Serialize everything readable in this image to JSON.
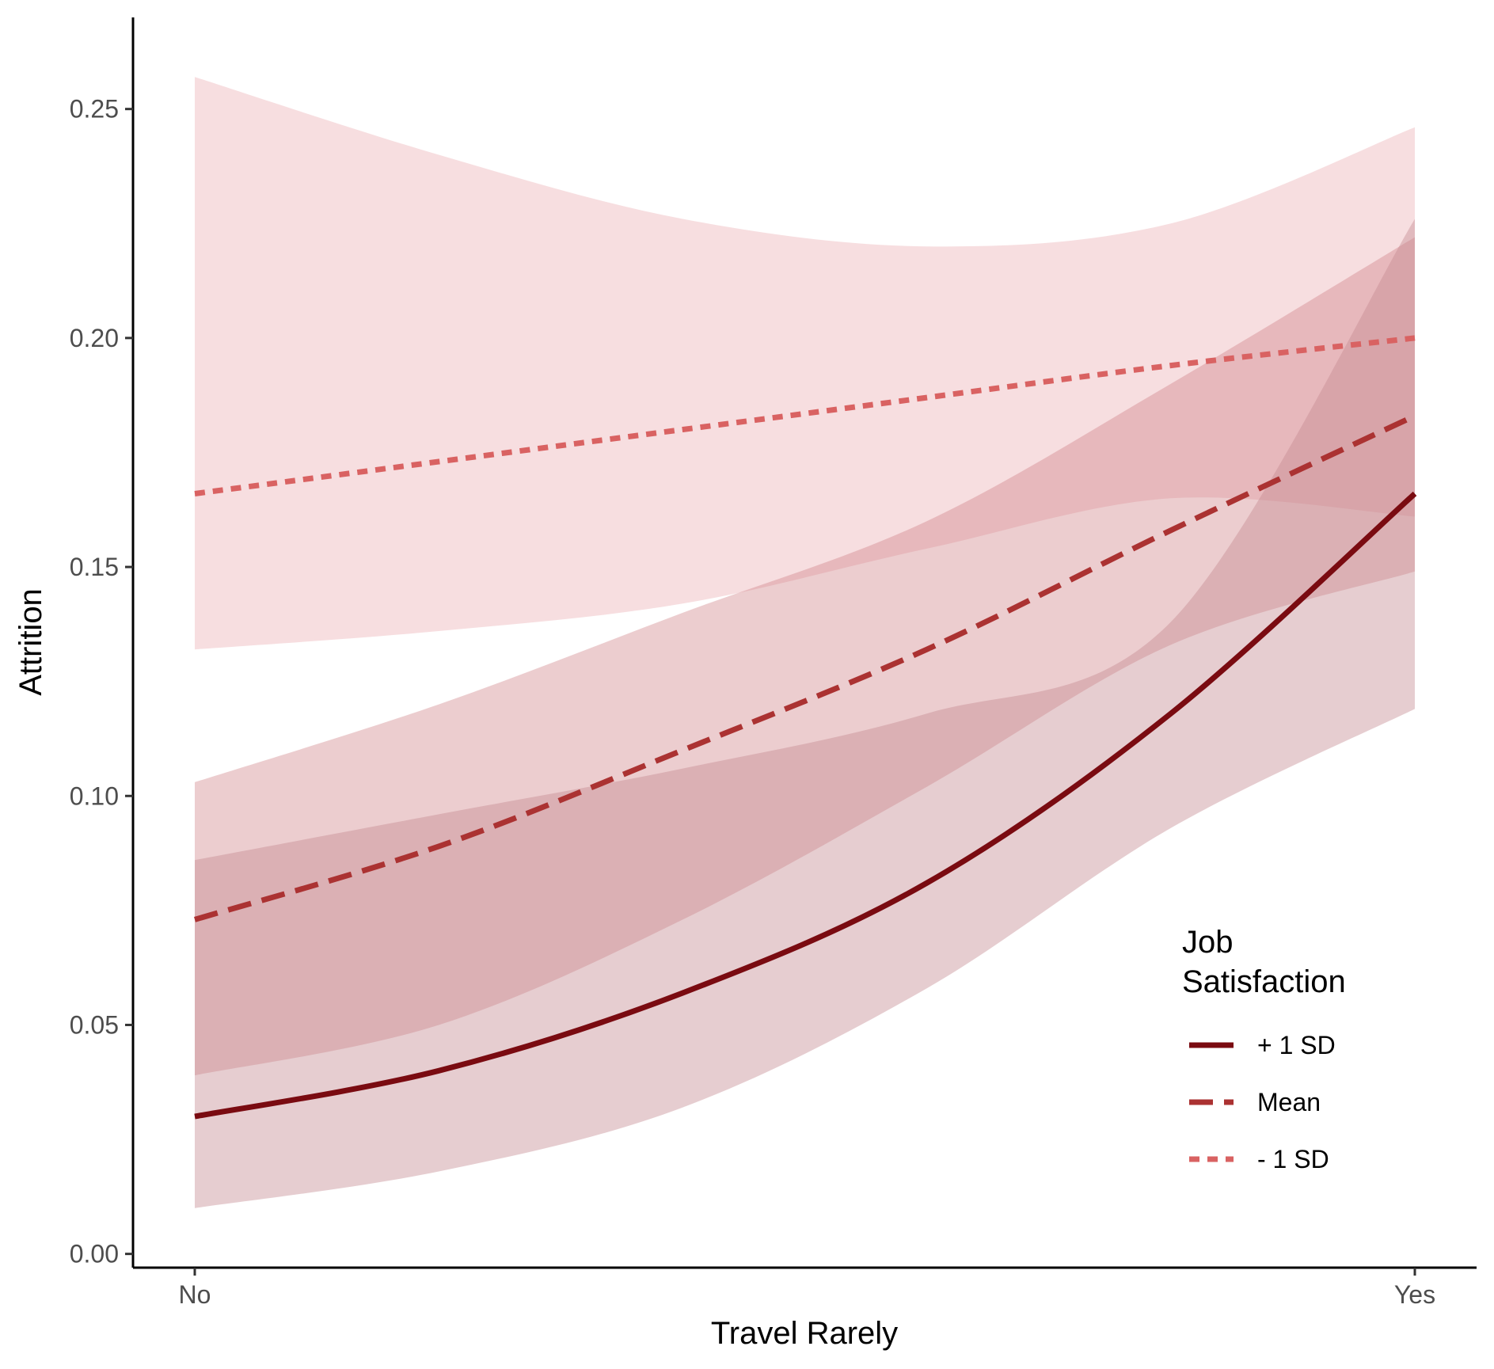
{
  "chart_data": {
    "type": "line",
    "xlabel": "Travel Rarely",
    "ylabel": "Attrition",
    "categories": [
      "No",
      "Yes"
    ],
    "ylim": [
      -0.003,
      0.27
    ],
    "yticks": [
      "0.00",
      "0.05",
      "0.10",
      "0.15",
      "0.20",
      "0.25"
    ],
    "grid": false,
    "legend": {
      "title_lines": [
        "Job",
        "Satisfaction"
      ],
      "position": "bottom-right inside plot"
    },
    "series": [
      {
        "name": "+ 1 SD",
        "linetype": "solid",
        "color": "#7a0b11",
        "band_color": "#c48890",
        "band_opacity": 0.42,
        "points": [
          {
            "x": 0.0,
            "y": 0.03,
            "lo": 0.01,
            "hi": 0.086
          },
          {
            "x": 0.2,
            "y": 0.04,
            "lo": 0.018,
            "hi": 0.096
          },
          {
            "x": 0.4,
            "y": 0.057,
            "lo": 0.032,
            "hi": 0.106
          },
          {
            "x": 0.6,
            "y": 0.081,
            "lo": 0.058,
            "hi": 0.118
          },
          {
            "x": 0.8,
            "y": 0.118,
            "lo": 0.093,
            "hi": 0.138
          },
          {
            "x": 1.0,
            "y": 0.166,
            "lo": 0.119,
            "hi": 0.226
          }
        ]
      },
      {
        "name": "Mean",
        "linetype": "dashed",
        "color": "#ab3232",
        "band_color": "#cc7b80",
        "band_opacity": 0.38,
        "points": [
          {
            "x": 0.0,
            "y": 0.073,
            "lo": 0.039,
            "hi": 0.103
          },
          {
            "x": 0.2,
            "y": 0.089,
            "lo": 0.05,
            "hi": 0.12
          },
          {
            "x": 0.4,
            "y": 0.11,
            "lo": 0.073,
            "hi": 0.14
          },
          {
            "x": 0.6,
            "y": 0.132,
            "lo": 0.102,
            "hi": 0.16
          },
          {
            "x": 0.8,
            "y": 0.158,
            "lo": 0.133,
            "hi": 0.19
          },
          {
            "x": 1.0,
            "y": 0.183,
            "lo": 0.149,
            "hi": 0.222
          }
        ]
      },
      {
        "name": "- 1 SD",
        "linetype": "dotted",
        "color": "#d96262",
        "band_color": "#f2cdd0",
        "band_opacity": 0.65,
        "points": [
          {
            "x": 0.0,
            "y": 0.166,
            "lo": 0.132,
            "hi": 0.257
          },
          {
            "x": 0.2,
            "y": 0.173,
            "lo": 0.136,
            "hi": 0.24
          },
          {
            "x": 0.4,
            "y": 0.18,
            "lo": 0.142,
            "hi": 0.226
          },
          {
            "x": 0.6,
            "y": 0.187,
            "lo": 0.154,
            "hi": 0.22
          },
          {
            "x": 0.8,
            "y": 0.194,
            "lo": 0.165,
            "hi": 0.225
          },
          {
            "x": 1.0,
            "y": 0.2,
            "lo": 0.161,
            "hi": 0.246
          }
        ]
      }
    ]
  }
}
